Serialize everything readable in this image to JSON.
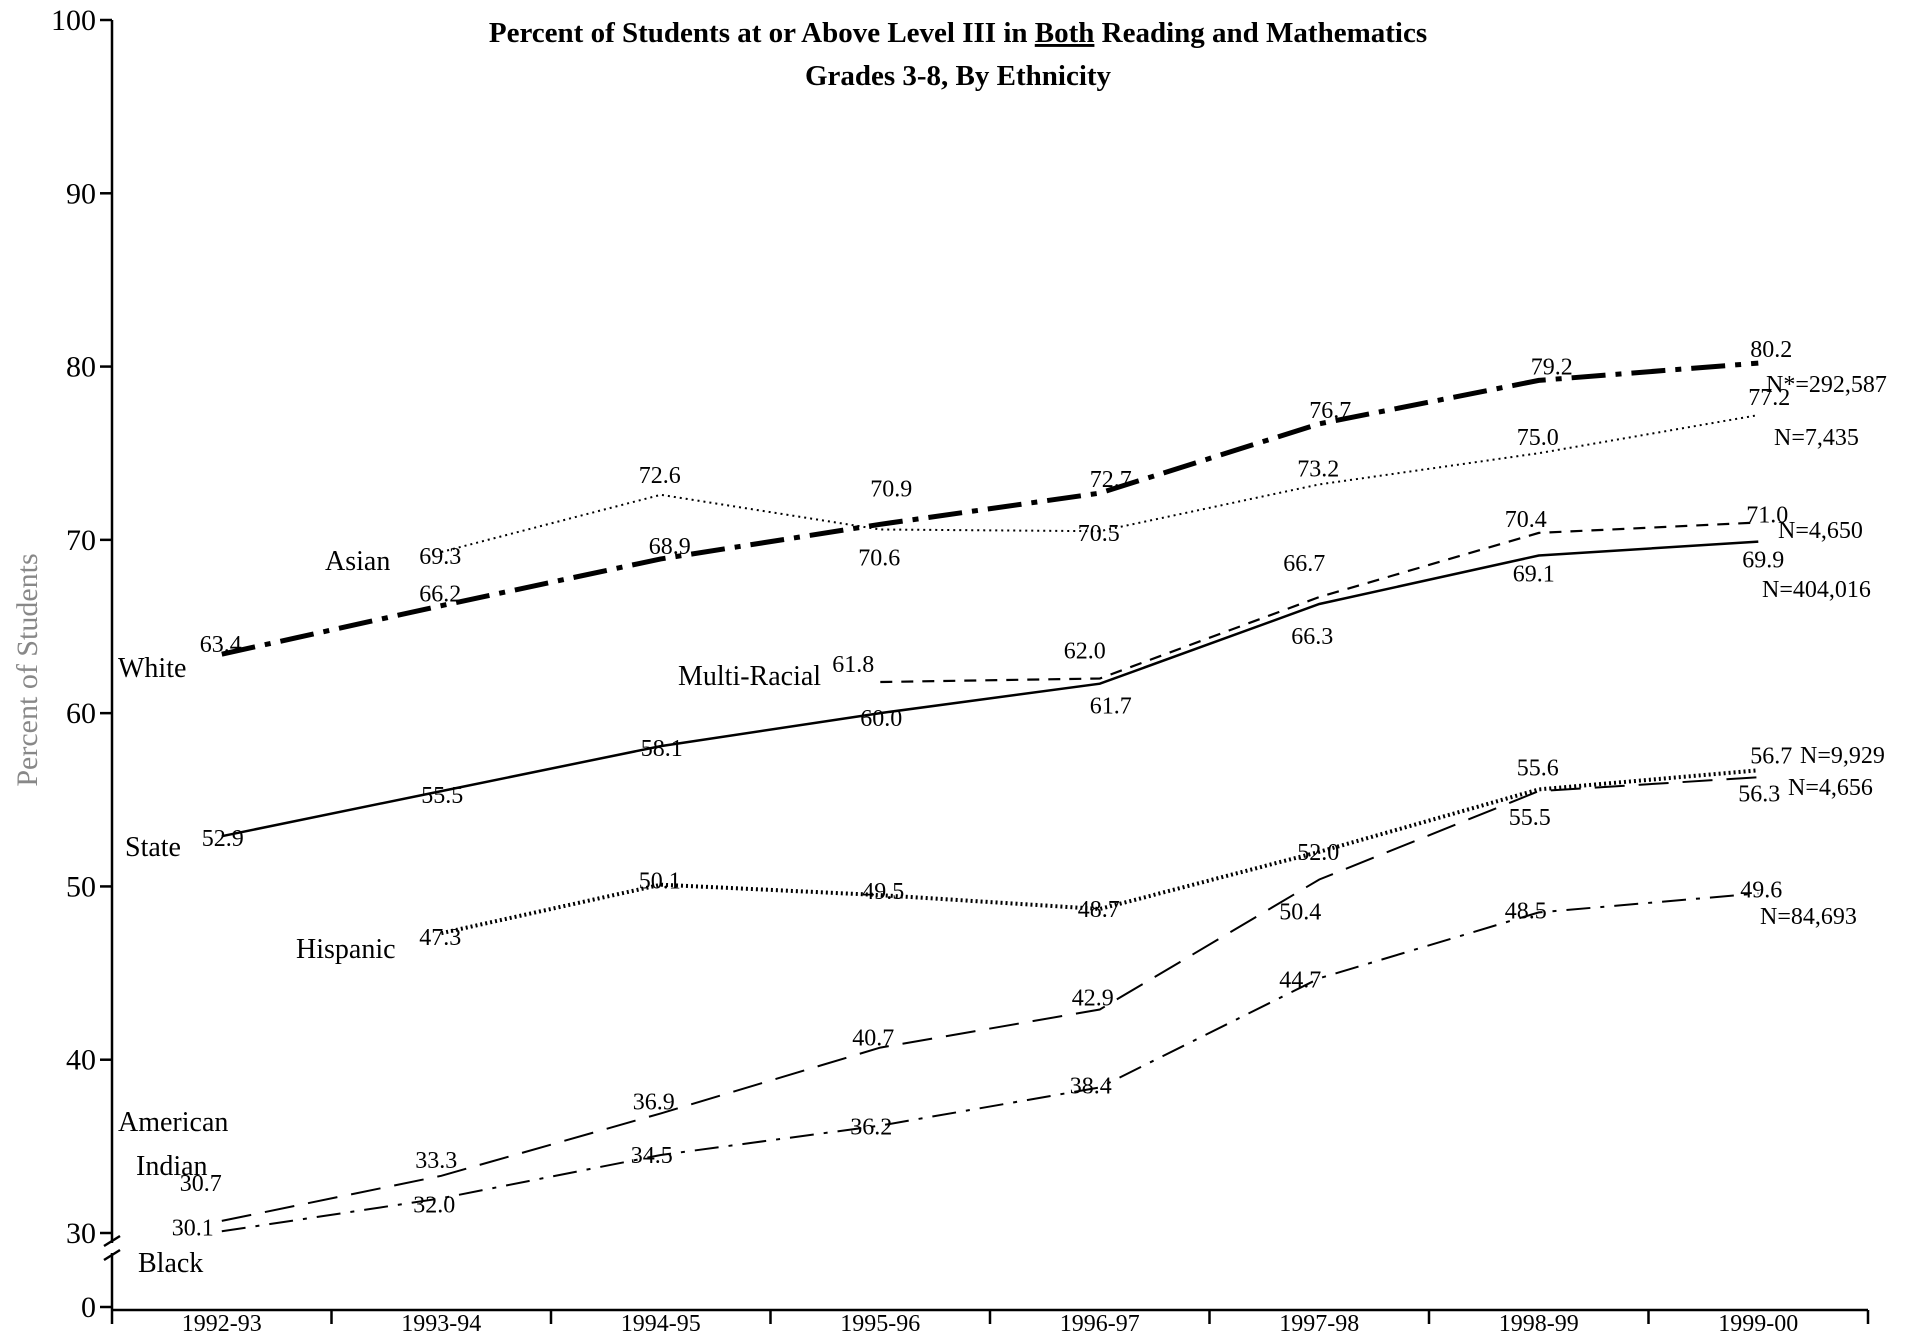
{
  "chart_data": {
    "type": "line",
    "title_lines": [
      "Percent of Students at or Above Level III in Both Reading and Mathematics",
      "Grades 3-8, By Ethnicity"
    ],
    "title_underlined_word": "Both",
    "ylabel": "Percent of Students",
    "xlabel": "",
    "categories": [
      "1992-93",
      "1993-94",
      "1994-95",
      "1995-96",
      "1996-97",
      "1997-98",
      "1998-99",
      "1999-00"
    ],
    "y_ticks": [
      0,
      30,
      40,
      50,
      60,
      70,
      80,
      90,
      100
    ],
    "ylim": [
      0,
      100
    ],
    "axis_break": "between 0 and 30",
    "series": [
      {
        "name": "White",
        "n_label": "N*=292,587",
        "values": [
          63.4,
          66.2,
          68.9,
          70.9,
          72.7,
          76.7,
          79.2,
          80.2
        ]
      },
      {
        "name": "Asian",
        "n_label": "N=7,435",
        "values": [
          null,
          69.3,
          72.6,
          70.6,
          70.5,
          73.2,
          75.0,
          77.2
        ]
      },
      {
        "name": "Multi-Racial",
        "n_label": "N=4,650",
        "values": [
          null,
          null,
          null,
          61.8,
          62.0,
          66.7,
          70.4,
          71.0
        ]
      },
      {
        "name": "State",
        "n_label": "N=404,016",
        "values": [
          52.9,
          55.5,
          58.1,
          60.0,
          61.7,
          66.3,
          69.1,
          69.9
        ]
      },
      {
        "name": "Hispanic",
        "n_label": "N=9,929",
        "values": [
          null,
          47.3,
          50.1,
          49.5,
          48.7,
          52.0,
          55.6,
          56.7
        ]
      },
      {
        "name": "American Indian",
        "n_label": "N=4,656",
        "values": [
          30.7,
          33.3,
          36.9,
          40.7,
          42.9,
          50.4,
          55.5,
          56.3
        ]
      },
      {
        "name": "Black",
        "n_label": "N=84,693",
        "values": [
          30.1,
          32.0,
          34.5,
          36.2,
          38.4,
          44.7,
          48.5,
          49.6
        ]
      }
    ]
  }
}
